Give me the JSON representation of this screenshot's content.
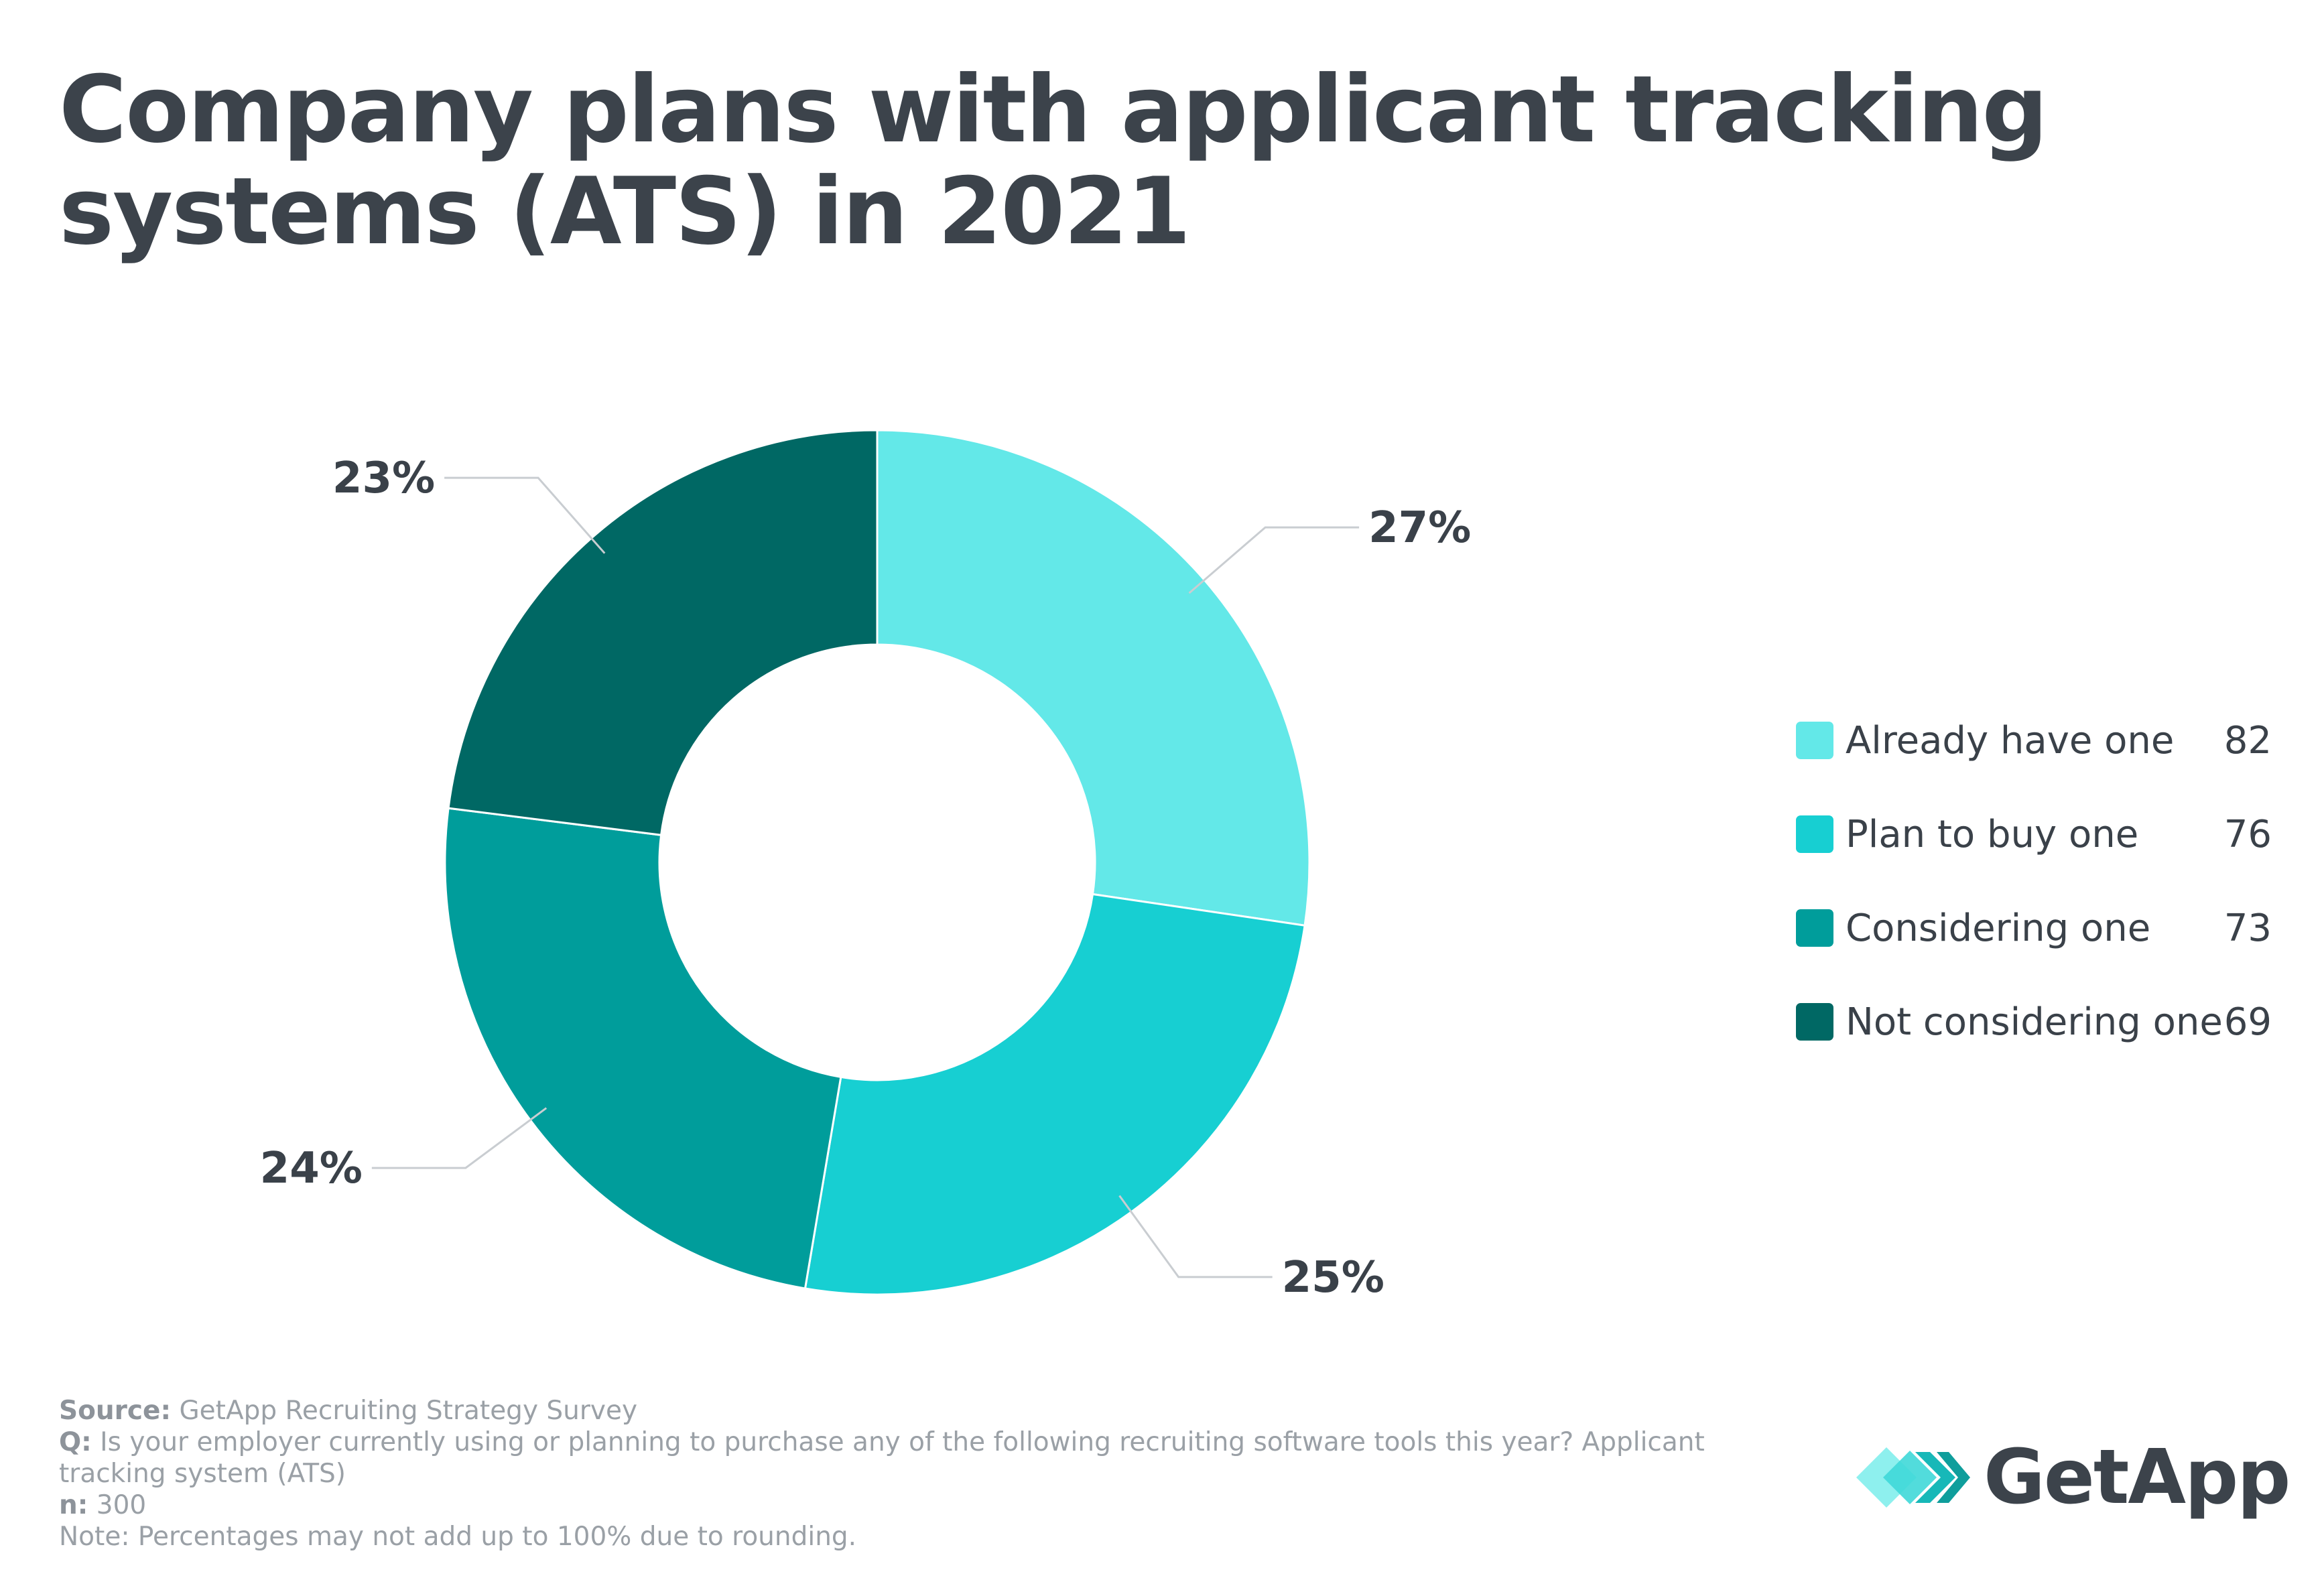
{
  "title": "Company plans with applicant tracking systems (ATS) in 2021",
  "chart_data": {
    "type": "pie",
    "donut": true,
    "title": "Company plans with applicant tracking systems (ATS) in 2021",
    "legend_position": "right",
    "slices": [
      {
        "label": "Already have one",
        "value": 82,
        "percent_label": "27%",
        "color": "#63e8e8"
      },
      {
        "label": "Plan to buy one",
        "value": 76,
        "percent_label": "25%",
        "color": "#17cfd2"
      },
      {
        "label": "Considering one",
        "value": 73,
        "percent_label": "24%",
        "color": "#009d9b"
      },
      {
        "label": "Not considering one",
        "value": 69,
        "percent_label": "23%",
        "color": "#006864"
      }
    ]
  },
  "footer": {
    "source_key": "Source:",
    "source_text": "GetApp Recruiting Strategy Survey",
    "q_key": "Q:",
    "q_text": "Is your employer currently using or planning to purchase any of the following recruiting software tools this year? Applicant tracking system (ATS)",
    "n_key": "n:",
    "n_text": "300",
    "note": "Note: Percentages may not add up to 100% due to rounding."
  },
  "logo": {
    "text": "GetApp",
    "icon": "getapp-chevrons-icon"
  }
}
